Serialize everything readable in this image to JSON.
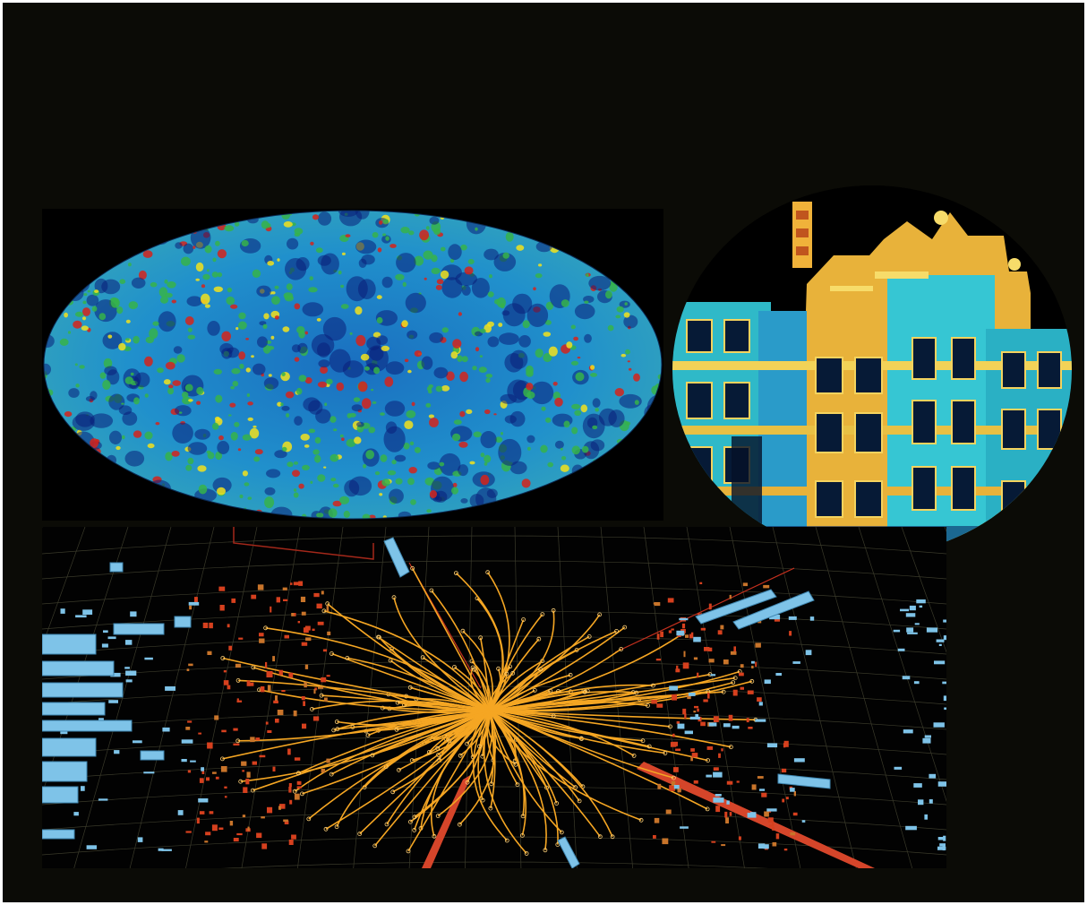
{
  "images": [
    {
      "name": "cosmic-microwave-background-map",
      "colors": {
        "base": "#1f86c9",
        "cold": "#0a1f7a",
        "warm": "#36b34a",
        "hot": "#f2e21c",
        "hottest": "#d5231b"
      }
    },
    {
      "name": "thermal-building-facade",
      "colors": {
        "sky": "#000000",
        "facade": "#f3c23c",
        "glow": "#3ee4e4",
        "shadow": "#0a3a8a"
      }
    },
    {
      "name": "particle-collision-event-display",
      "colors": {
        "tracks": "#f5a623",
        "hits": "#d6401e",
        "towers": "#7ec3e8",
        "jets": "#e0472a"
      }
    }
  ]
}
